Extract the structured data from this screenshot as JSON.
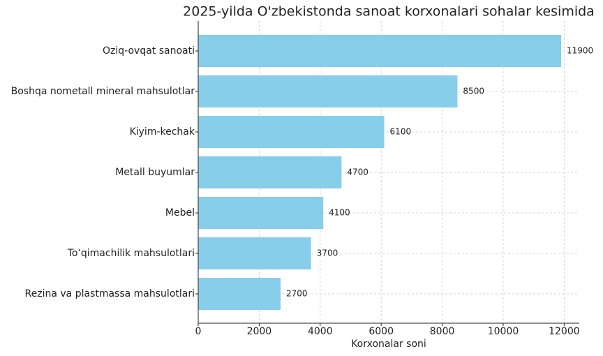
{
  "chart_data": {
    "type": "barh",
    "title": "2025-yilda O'zbekistonda sanoat korxonalari sohalar kesimida",
    "xlabel": "Korxonalar soni",
    "categories": [
      "Oziq-ovqat sanoati",
      "Boshqa nometall mineral mahsulotlar",
      "Kiyim-kechak",
      "Metall buyumlar",
      "Mebel",
      "To‘qimachilik mahsulotlari",
      "Rezina va plastmassa mahsulotlari"
    ],
    "values": [
      11900,
      8500,
      6100,
      4700,
      4100,
      3700,
      2700
    ],
    "color": "#87ceeb",
    "xlim": [
      0,
      12495
    ],
    "xticks": [
      0,
      2000,
      4000,
      6000,
      8000,
      10000,
      12000
    ],
    "grid": true
  }
}
